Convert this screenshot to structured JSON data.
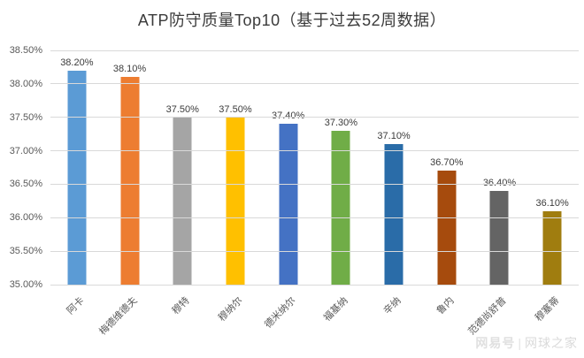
{
  "title": "ATP防守质量Top10（基于过去52周数据）",
  "chart_data": {
    "type": "bar",
    "title": "ATP防守质量Top10（基于过去52周数据）",
    "categories": [
      "阿卡",
      "梅德维德夫",
      "穆特",
      "穆纳尔",
      "德米纳尔",
      "福基纳",
      "辛纳",
      "鲁内",
      "范德尚舒普",
      "穆塞蒂"
    ],
    "values": [
      38.2,
      38.1,
      37.5,
      37.5,
      37.4,
      37.3,
      37.1,
      36.7,
      36.4,
      36.1
    ],
    "data_labels": [
      "38.20%",
      "38.10%",
      "37.50%",
      "37.50%",
      "37.40%",
      "37.30%",
      "37.10%",
      "36.70%",
      "36.40%",
      "36.10%"
    ],
    "bar_colors": [
      "#5B9BD5",
      "#ED7D31",
      "#A5A5A5",
      "#FFC000",
      "#4472C4",
      "#70AD47",
      "#2A6CA8",
      "#A64B0D",
      "#646464",
      "#A07D0F"
    ],
    "xlabel": "",
    "ylabel": "",
    "ylim": [
      35.0,
      38.5
    ],
    "ytick_labels": [
      "38.50%",
      "38.00%",
      "37.50%",
      "37.00%",
      "36.50%",
      "36.00%",
      "35.50%",
      "35.00%"
    ],
    "grid": true,
    "legend_position": "none"
  },
  "watermark": {
    "logo": "网易号",
    "separator": "|",
    "name": "网球之家"
  },
  "colors": {
    "gridline": "#D9D9D9",
    "axis_line": "#BFBFBF",
    "axis_text": "#595959",
    "value_label_text": "#3B3B3B",
    "title_text": "#3B3B3B",
    "watermark_text": "#DADADA"
  }
}
